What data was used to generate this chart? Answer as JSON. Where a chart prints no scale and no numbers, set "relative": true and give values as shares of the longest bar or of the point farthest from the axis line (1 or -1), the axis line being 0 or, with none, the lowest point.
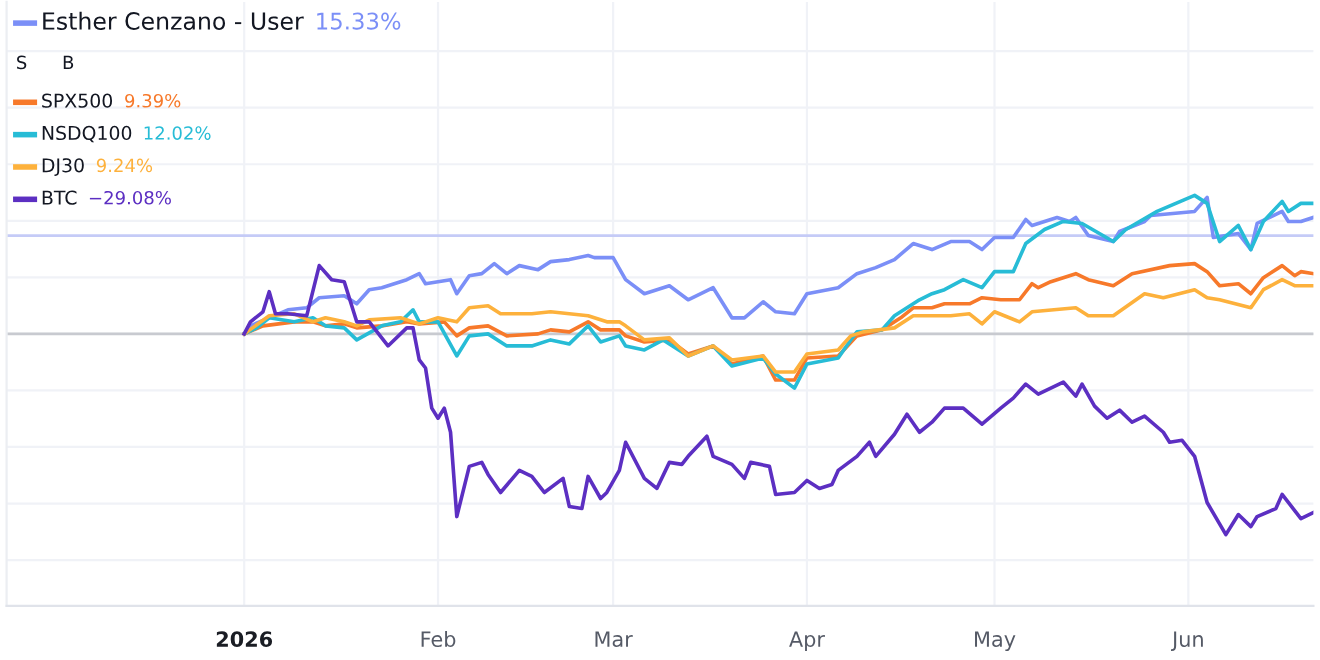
{
  "chart_data": {
    "type": "line",
    "relative": true,
    "grid": true,
    "legend": "top left",
    "line_style": "solid",
    "marker": "none",
    "xlim": [
      "2025-11-24",
      "2026-06-21"
    ],
    "xticks": [
      {
        "value": "2026-01-01",
        "label": "2026"
      },
      {
        "value": "2026-02-01",
        "label": "Feb"
      },
      {
        "value": "2026-03-01",
        "label": "Mar"
      },
      {
        "value": "2026-04-01",
        "label": "Apr"
      },
      {
        "value": "2026-05-01",
        "label": "May"
      },
      {
        "value": "2026-06-01",
        "label": "Jun"
      }
    ],
    "ref_lines": [
      {
        "axis": "y",
        "value": 0,
        "color": "#c8cad0"
      },
      {
        "axis": "y",
        "value": 0.49,
        "color": "#c5cbf7"
      }
    ],
    "annotations": [
      "15.33%",
      "9.39%",
      "12.02%",
      "9.24%",
      "−29.08%",
      "S",
      "B"
    ],
    "series": [
      {
        "name": "Esther Cenzano - User",
        "color": "#7b8ff7",
        "x": [
          "2026-01-01",
          "2026-01-02",
          "2026-01-05",
          "2026-01-08",
          "2026-01-11",
          "2026-01-13",
          "2026-01-17",
          "2026-01-19",
          "2026-01-21",
          "2026-01-23",
          "2026-01-27",
          "2026-01-29",
          "2026-01-30",
          "2026-02-03",
          "2026-02-04",
          "2026-02-06",
          "2026-02-08",
          "2026-02-10",
          "2026-02-12",
          "2026-02-14",
          "2026-02-17",
          "2026-02-19",
          "2026-02-22",
          "2026-02-25",
          "2026-02-26",
          "2026-03-01",
          "2026-03-03",
          "2026-03-06",
          "2026-03-10",
          "2026-03-13",
          "2026-03-17",
          "2026-03-20",
          "2026-03-22",
          "2026-03-25",
          "2026-03-27",
          "2026-03-30",
          "2026-04-01",
          "2026-04-06",
          "2026-04-09",
          "2026-04-12",
          "2026-04-15",
          "2026-04-18",
          "2026-04-21",
          "2026-04-24",
          "2026-04-27",
          "2026-04-29",
          "2026-05-01",
          "2026-05-04",
          "2026-05-06",
          "2026-05-07",
          "2026-05-09",
          "2026-05-11",
          "2026-05-13",
          "2026-05-14",
          "2026-05-16",
          "2026-05-20",
          "2026-05-21",
          "2026-05-25",
          "2026-05-26",
          "2026-06-02",
          "2026-06-04",
          "2026-06-05",
          "2026-06-09",
          "2026-06-11",
          "2026-06-12",
          "2026-06-16",
          "2026-06-17",
          "2026-06-19",
          "2026-06-21"
        ],
        "values": [
          0,
          0.04,
          0.08,
          0.12,
          0.13,
          0.18,
          0.19,
          0.15,
          0.22,
          0.23,
          0.27,
          0.3,
          0.25,
          0.27,
          0.2,
          0.29,
          0.3,
          0.35,
          0.3,
          0.34,
          0.32,
          0.36,
          0.37,
          0.39,
          0.38,
          0.38,
          0.27,
          0.2,
          0.24,
          0.17,
          0.23,
          0.08,
          0.08,
          0.16,
          0.11,
          0.1,
          0.2,
          0.23,
          0.3,
          0.33,
          0.37,
          0.45,
          0.42,
          0.46,
          0.46,
          0.42,
          0.48,
          0.48,
          0.57,
          0.54,
          0.56,
          0.58,
          0.56,
          0.58,
          0.49,
          0.46,
          0.51,
          0.56,
          0.59,
          0.61,
          0.68,
          0.48,
          0.5,
          0.42,
          0.55,
          0.61,
          0.56,
          0.56,
          0.58
        ]
      },
      {
        "name": "SPX500",
        "color": "#f7792a",
        "x": [
          "2026-01-01",
          "2026-01-04",
          "2026-01-09",
          "2026-01-12",
          "2026-01-14",
          "2026-01-17",
          "2026-01-19",
          "2026-01-23",
          "2026-01-27",
          "2026-01-29",
          "2026-02-02",
          "2026-02-04",
          "2026-02-06",
          "2026-02-09",
          "2026-02-12",
          "2026-02-17",
          "2026-02-19",
          "2026-02-22",
          "2026-02-25",
          "2026-02-27",
          "2026-03-02",
          "2026-03-03",
          "2026-03-06",
          "2026-03-10",
          "2026-03-13",
          "2026-03-17",
          "2026-03-20",
          "2026-03-25",
          "2026-03-27",
          "2026-03-30",
          "2026-04-01",
          "2026-04-06",
          "2026-04-09",
          "2026-04-13",
          "2026-04-16",
          "2026-04-18",
          "2026-04-21",
          "2026-04-23",
          "2026-04-27",
          "2026-04-29",
          "2026-05-02",
          "2026-05-05",
          "2026-05-07",
          "2026-05-08",
          "2026-05-10",
          "2026-05-14",
          "2026-05-16",
          "2026-05-20",
          "2026-05-23",
          "2026-05-29",
          "2026-06-02",
          "2026-06-04",
          "2026-06-06",
          "2026-06-09",
          "2026-06-11",
          "2026-06-13",
          "2026-06-16",
          "2026-06-18",
          "2026-06-19",
          "2026-06-21"
        ],
        "values": [
          0,
          0.04,
          0.06,
          0.06,
          0.04,
          0.05,
          0.03,
          0.04,
          0.06,
          0.05,
          0.06,
          -0.01,
          0.03,
          0.04,
          -0.01,
          0,
          0.02,
          0.01,
          0.06,
          0.02,
          0.02,
          -0.01,
          -0.04,
          -0.03,
          -0.1,
          -0.06,
          -0.15,
          -0.11,
          -0.23,
          -0.23,
          -0.12,
          -0.11,
          -0.01,
          0.02,
          0.08,
          0.13,
          0.13,
          0.15,
          0.15,
          0.18,
          0.17,
          0.17,
          0.25,
          0.23,
          0.26,
          0.3,
          0.27,
          0.24,
          0.3,
          0.34,
          0.35,
          0.31,
          0.24,
          0.25,
          0.2,
          0.28,
          0.34,
          0.29,
          0.31,
          0.3
        ]
      },
      {
        "name": "NSDQ100",
        "color": "#27bcd6",
        "x": [
          "2026-01-01",
          "2026-01-03",
          "2026-01-05",
          "2026-01-09",
          "2026-01-12",
          "2026-01-14",
          "2026-01-17",
          "2026-01-19",
          "2026-01-23",
          "2026-01-26",
          "2026-01-28",
          "2026-01-29",
          "2026-02-01",
          "2026-02-04",
          "2026-02-06",
          "2026-02-09",
          "2026-02-12",
          "2026-02-16",
          "2026-02-19",
          "2026-02-22",
          "2026-02-25",
          "2026-02-27",
          "2026-03-02",
          "2026-03-03",
          "2026-03-06",
          "2026-03-09",
          "2026-03-13",
          "2026-03-17",
          "2026-03-20",
          "2026-03-25",
          "2026-03-27",
          "2026-03-30",
          "2026-04-01",
          "2026-04-06",
          "2026-04-08",
          "2026-04-09",
          "2026-04-13",
          "2026-04-15",
          "2026-04-19",
          "2026-04-21",
          "2026-04-23",
          "2026-04-26",
          "2026-04-29",
          "2026-05-01",
          "2026-05-04",
          "2026-05-06",
          "2026-05-09",
          "2026-05-12",
          "2026-05-15",
          "2026-05-20",
          "2026-05-22",
          "2026-05-27",
          "2026-06-02",
          "2026-06-04",
          "2026-06-06",
          "2026-06-09",
          "2026-06-11",
          "2026-06-13",
          "2026-06-16",
          "2026-06-17",
          "2026-06-19",
          "2026-06-21"
        ],
        "values": [
          0,
          0.03,
          0.08,
          0.06,
          0.08,
          0.04,
          0.03,
          -0.03,
          0.04,
          0.06,
          0.12,
          0.06,
          0.06,
          -0.11,
          -0.01,
          0,
          -0.06,
          -0.06,
          -0.03,
          -0.05,
          0.04,
          -0.04,
          -0.01,
          -0.06,
          -0.08,
          -0.03,
          -0.11,
          -0.06,
          -0.16,
          -0.12,
          -0.2,
          -0.27,
          -0.15,
          -0.12,
          -0.03,
          0.01,
          0.02,
          0.09,
          0.17,
          0.2,
          0.22,
          0.27,
          0.23,
          0.31,
          0.31,
          0.45,
          0.52,
          0.56,
          0.55,
          0.46,
          0.52,
          0.61,
          0.69,
          0.65,
          0.46,
          0.54,
          0.42,
          0.56,
          0.66,
          0.61,
          0.65,
          0.65
        ]
      },
      {
        "name": "DJ30",
        "color": "#fdb13c",
        "x": [
          "2026-01-01",
          "2026-01-05",
          "2026-01-09",
          "2026-01-12",
          "2026-01-14",
          "2026-01-17",
          "2026-01-19",
          "2026-01-21",
          "2026-01-26",
          "2026-01-29",
          "2026-02-01",
          "2026-02-04",
          "2026-02-06",
          "2026-02-09",
          "2026-02-11",
          "2026-02-16",
          "2026-02-19",
          "2026-02-22",
          "2026-02-25",
          "2026-02-28",
          "2026-03-02",
          "2026-03-03",
          "2026-03-06",
          "2026-03-10",
          "2026-03-13",
          "2026-03-17",
          "2026-03-20",
          "2026-03-25",
          "2026-03-27",
          "2026-03-30",
          "2026-04-01",
          "2026-04-06",
          "2026-04-08",
          "2026-04-10",
          "2026-04-15",
          "2026-04-18",
          "2026-04-24",
          "2026-04-27",
          "2026-04-29",
          "2026-05-01",
          "2026-05-05",
          "2026-05-07",
          "2026-05-14",
          "2026-05-16",
          "2026-05-20",
          "2026-05-25",
          "2026-05-28",
          "2026-06-02",
          "2026-06-04",
          "2026-06-06",
          "2026-06-11",
          "2026-06-13",
          "2026-06-16",
          "2026-06-18",
          "2026-06-21"
        ],
        "values": [
          0,
          0.09,
          0.1,
          0.06,
          0.08,
          0.06,
          0.04,
          0.07,
          0.08,
          0.05,
          0.08,
          0.06,
          0.13,
          0.14,
          0.1,
          0.1,
          0.11,
          0.1,
          0.09,
          0.06,
          0.06,
          0.04,
          -0.03,
          -0.02,
          -0.11,
          -0.06,
          -0.13,
          -0.11,
          -0.19,
          -0.19,
          -0.1,
          -0.08,
          -0.01,
          0.01,
          0.03,
          0.09,
          0.09,
          0.1,
          0.05,
          0.11,
          0.06,
          0.11,
          0.13,
          0.09,
          0.09,
          0.2,
          0.18,
          0.22,
          0.18,
          0.17,
          0.13,
          0.22,
          0.27,
          0.24,
          0.24
        ]
      },
      {
        "name": "BTC",
        "color": "#5c2fc2",
        "x": [
          "2026-01-01",
          "2026-01-02",
          "2026-01-04",
          "2026-01-05",
          "2026-01-06",
          "2026-01-08",
          "2026-01-11",
          "2026-01-13",
          "2026-01-15",
          "2026-01-17",
          "2026-01-19",
          "2026-01-21",
          "2026-01-24",
          "2026-01-27",
          "2026-01-28",
          "2026-01-29",
          "2026-01-30",
          "2026-01-31",
          "2026-02-01",
          "2026-02-02",
          "2026-02-03",
          "2026-02-04",
          "2026-02-06",
          "2026-02-08",
          "2026-02-09",
          "2026-02-11",
          "2026-02-14",
          "2026-02-16",
          "2026-02-18",
          "2026-02-21",
          "2026-02-22",
          "2026-02-24",
          "2026-02-25",
          "2026-02-27",
          "2026-02-28",
          "2026-03-02",
          "2026-03-03",
          "2026-03-06",
          "2026-03-08",
          "2026-03-10",
          "2026-03-12",
          "2026-03-13",
          "2026-03-16",
          "2026-03-17",
          "2026-03-20",
          "2026-03-22",
          "2026-03-23",
          "2026-03-26",
          "2026-03-27",
          "2026-03-30",
          "2026-04-01",
          "2026-04-03",
          "2026-04-05",
          "2026-04-06",
          "2026-04-09",
          "2026-04-11",
          "2026-04-12",
          "2026-04-15",
          "2026-04-17",
          "2026-04-19",
          "2026-04-21",
          "2026-04-23",
          "2026-04-26",
          "2026-04-29",
          "2026-05-02",
          "2026-05-04",
          "2026-05-06",
          "2026-05-08",
          "2026-05-12",
          "2026-05-14",
          "2026-05-15",
          "2026-05-17",
          "2026-05-19",
          "2026-05-21",
          "2026-05-23",
          "2026-05-25",
          "2026-05-28",
          "2026-05-29",
          "2026-05-31",
          "2026-06-02",
          "2026-06-04",
          "2026-06-07",
          "2026-06-09",
          "2026-06-11",
          "2026-06-12",
          "2026-06-15",
          "2026-06-16",
          "2026-06-19",
          "2026-06-21"
        ],
        "values": [
          0,
          0.06,
          0.11,
          0.21,
          0.1,
          0.1,
          0.09,
          0.34,
          0.27,
          0.26,
          0.06,
          0.06,
          -0.06,
          0.03,
          0.03,
          -0.13,
          -0.17,
          -0.37,
          -0.42,
          -0.37,
          -0.49,
          -0.91,
          -0.66,
          -0.64,
          -0.7,
          -0.79,
          -0.68,
          -0.71,
          -0.79,
          -0.72,
          -0.86,
          -0.87,
          -0.71,
          -0.82,
          -0.79,
          -0.68,
          -0.54,
          -0.72,
          -0.77,
          -0.64,
          -0.65,
          -0.61,
          -0.51,
          -0.61,
          -0.65,
          -0.72,
          -0.64,
          -0.66,
          -0.8,
          -0.79,
          -0.73,
          -0.77,
          -0.75,
          -0.68,
          -0.61,
          -0.54,
          -0.61,
          -0.5,
          -0.4,
          -0.49,
          -0.44,
          -0.37,
          -0.37,
          -0.45,
          -0.37,
          -0.32,
          -0.25,
          -0.3,
          -0.24,
          -0.31,
          -0.25,
          -0.36,
          -0.42,
          -0.38,
          -0.44,
          -0.41,
          -0.49,
          -0.54,
          -0.53,
          -0.61,
          -0.84,
          -1,
          -0.9,
          -0.96,
          -0.91,
          -0.87,
          -0.8,
          -0.92,
          -0.89
        ]
      }
    ]
  }
}
